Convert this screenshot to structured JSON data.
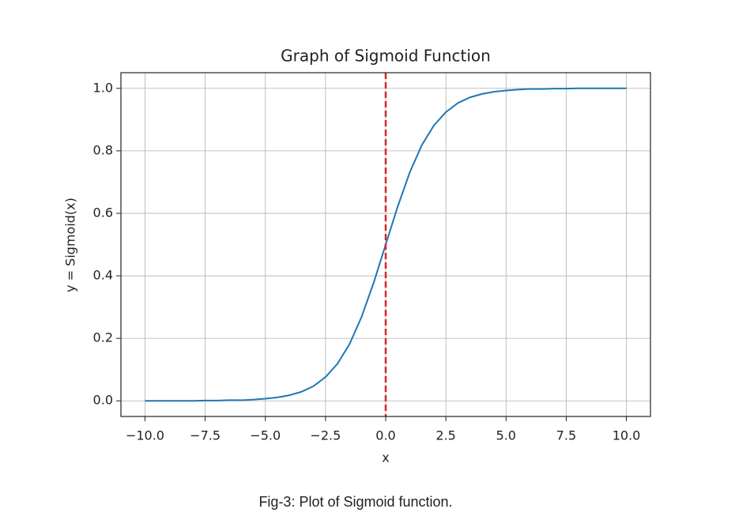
{
  "chart_data": {
    "type": "line",
    "title": "Graph of Sigmoid Function",
    "x_label": "x",
    "y_label": "y = Sigmoid(x)",
    "x": [
      -10,
      -9.5,
      -9,
      -8.5,
      -8,
      -7.5,
      -7,
      -6.5,
      -6,
      -5.5,
      -5,
      -4.5,
      -4,
      -3.5,
      -3,
      -2.5,
      -2,
      -1.5,
      -1,
      -0.5,
      0,
      0.5,
      1,
      1.5,
      2,
      2.5,
      3,
      3.5,
      4,
      4.5,
      5,
      5.5,
      6,
      6.5,
      7,
      7.5,
      8,
      8.5,
      9,
      9.5,
      10
    ],
    "series": [
      {
        "color": "#1f77b4",
        "values": [
          0.0,
          0.0,
          0.0,
          0.0,
          0.0,
          0.001,
          0.001,
          0.002,
          0.002,
          0.004,
          0.007,
          0.011,
          0.018,
          0.029,
          0.047,
          0.076,
          0.119,
          0.182,
          0.269,
          0.378,
          0.5,
          0.622,
          0.731,
          0.818,
          0.881,
          0.924,
          0.953,
          0.971,
          0.982,
          0.989,
          0.993,
          0.996,
          0.998,
          0.998,
          0.999,
          0.999,
          1.0,
          1.0,
          1.0,
          1.0,
          1.0
        ]
      }
    ],
    "vline": {
      "x": 0,
      "color": "#d62728"
    },
    "xlim": [
      -11,
      11
    ],
    "xticks": [
      {
        "value": -10,
        "label": "−10.0"
      },
      {
        "value": -7.5,
        "label": "−7.5"
      },
      {
        "value": -5,
        "label": "−5.0"
      },
      {
        "value": -2.5,
        "label": "−2.5"
      },
      {
        "value": 0,
        "label": "0.0"
      },
      {
        "value": 2.5,
        "label": "2.5"
      },
      {
        "value": 5,
        "label": "5.0"
      },
      {
        "value": 7.5,
        "label": "7.5"
      },
      {
        "value": 10,
        "label": "10.0"
      }
    ],
    "ylim": [
      -0.05,
      1.05
    ],
    "yticks": [
      {
        "value": 0,
        "label": "0.0"
      },
      0.2,
      0.4,
      0.6,
      0.8,
      {
        "value": 1,
        "label": "1.0"
      }
    ],
    "grid": true
  },
  "caption": "Fig-3: Plot of Sigmoid function."
}
